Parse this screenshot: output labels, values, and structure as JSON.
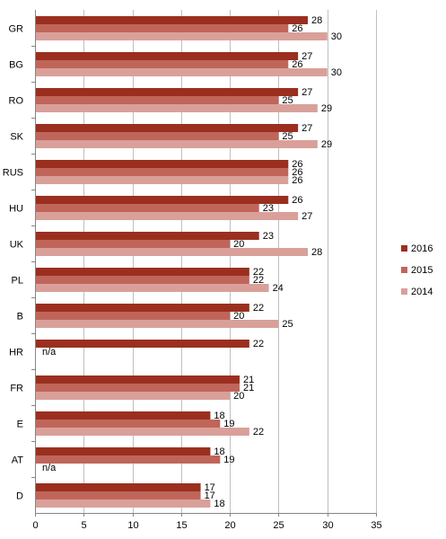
{
  "chart_data": {
    "type": "bar",
    "orientation": "horizontal",
    "categories": [
      "GR",
      "BG",
      "RO",
      "SK",
      "RUS",
      "HU",
      "UK",
      "PL",
      "B",
      "HR",
      "FR",
      "E",
      "AT",
      "D"
    ],
    "series": [
      {
        "name": "2016",
        "color": "#9b2f1f",
        "values": [
          28,
          27,
          27,
          27,
          26,
          26,
          23,
          22,
          22,
          22,
          21,
          18,
          18,
          17
        ],
        "labels": [
          "28",
          "27",
          "27",
          "27",
          "26",
          "26",
          "23",
          "22",
          "22",
          "22",
          "21",
          "18",
          "18",
          "17"
        ]
      },
      {
        "name": "2015",
        "color": "#c0655a",
        "values": [
          26,
          26,
          25,
          25,
          26,
          23,
          20,
          22,
          20,
          null,
          21,
          19,
          19,
          17
        ],
        "labels": [
          "26",
          "26",
          "25",
          "25",
          "26",
          "23",
          "20",
          "22",
          "20",
          "n/a",
          "21",
          "19",
          "19",
          "17"
        ]
      },
      {
        "name": "2014",
        "color": "#d9a09a",
        "values": [
          30,
          30,
          29,
          29,
          26,
          27,
          28,
          24,
          25,
          null,
          20,
          22,
          null,
          18
        ],
        "labels": [
          "30",
          "30",
          "29",
          "29",
          "26",
          "27",
          "28",
          "24",
          "25",
          "",
          "20",
          "22",
          "n/a",
          "18"
        ]
      }
    ],
    "xlim": [
      0,
      35
    ],
    "xticks": [
      "0",
      "5",
      "10",
      "15",
      "20",
      "25",
      "30",
      "35"
    ],
    "grid": true,
    "legend_position": "right"
  }
}
